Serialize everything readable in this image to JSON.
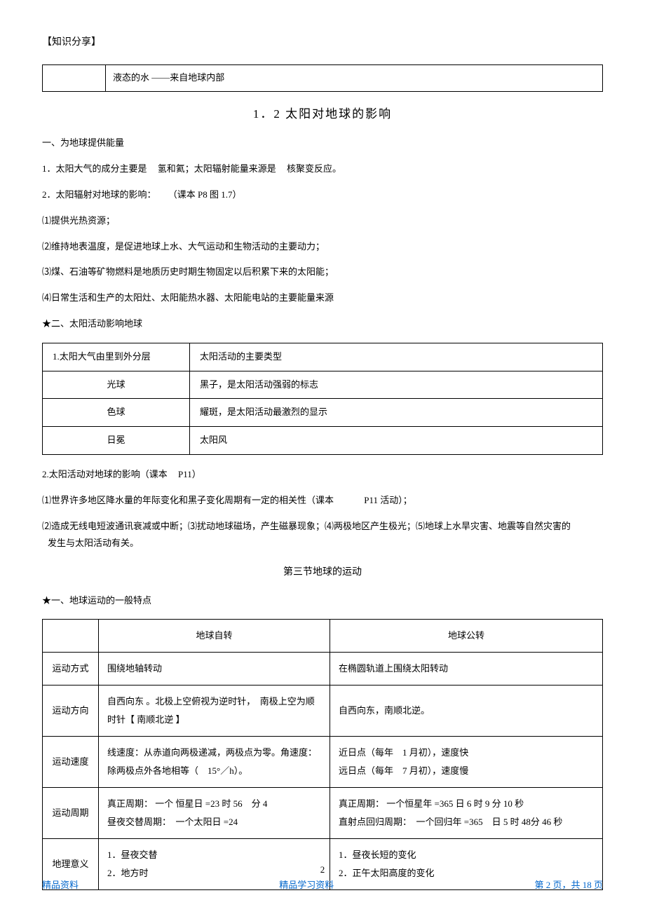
{
  "header_tag": "【知识分享】",
  "intro_cell_left": "",
  "intro_cell_right": "液态的水 ——来自地球内部",
  "section1_title": "1．2 太阳对地球的影响",
  "s1_h1": "一、为地球提供能量",
  "s1_p1_a": "1．太阳大气的成分主要是",
  "s1_p1_b": "氢和氦；太阳辐射能量来源是",
  "s1_p1_c": "核聚变反应。",
  "s1_p2_a": "2．太阳辐射对地球的影响：",
  "s1_p2_b": "（课本 P8 图 1.7）",
  "s1_list1": "⑴提供光热资源；",
  "s1_list2": "⑵维持地表温度，是促进地球上水、大气运动和生物活动的主要动力；",
  "s1_list3": "⑶煤、石油等矿物燃料是地质历史时期生物固定以后积累下来的太阳能；",
  "s1_list4": "⑷日常生活和生产的太阳灶、太阳能热水器、太阳能电站的主要能量来源",
  "s1_h2": "★二、太阳活动影响地球",
  "table1": {
    "header": [
      "1.太阳大气由里到外分层",
      "太阳活动的主要类型"
    ],
    "rows": [
      [
        "光球",
        "黑子，是太阳活动强弱的标志"
      ],
      [
        "色球",
        "耀斑，是太阳活动最激烈的显示"
      ],
      [
        "日冕",
        "太阳风"
      ]
    ]
  },
  "s1_p3_a": "2.太阳活动对地球的影响（课本",
  "s1_p3_b": "P11）",
  "s1_p4_a": "⑴世界许多地区降水量的年际变化和黑子变化周期有一定的相关性（课本",
  "s1_p4_b": "P11 活动）；",
  "s1_p5": "⑵造成无线电短波通讯衰减或中断；⑶扰动地球磁场，产生磁暴现象；⑷两极地区产生极光；⑸地球上水旱灾害、地震等自然灾害的",
  "s1_p6": "发生与太阳活动有关。",
  "section2_title": "第三节地球的运动",
  "s2_h1": "★一、地球运动的一般特点",
  "table2": {
    "col_headers": [
      "",
      "地球自转",
      "地球公转"
    ],
    "rows": [
      {
        "label": "运动方式",
        "rot": "围绕地轴转动",
        "rev": "在椭圆轨道上围绕太阳转动"
      },
      {
        "label": "运动方向",
        "rot": "自西向东 。北极上空俯视为逆时针，　南极上空为顺时针【 南顺北逆 】",
        "rev": "自西向东，南顺北逆。"
      },
      {
        "label": "运动速度",
        "rot": "线速度：从赤道向两极递减，两极点为零。角速度：除两极点外各地相等（　15°／h）。",
        "rev": "近日点（每年　1 月初），速度快\n远日点（每年　7 月初），速度慢"
      },
      {
        "label": "运动周期",
        "rot": "真正周期： 一个 恒星日 =23 时 56　分 4\n昼夜交替周期：　一个太阳日 =24",
        "rev": "真正周期： 一个恒星年 =365 日 6 时 9 分 10 秒\n直射点回归周期：　一个回归年 =365　日 5 时 48分 46 秒"
      },
      {
        "label": "地理意义",
        "rot": "1．昼夜交替\n2．地方时",
        "rev": "1．昼夜长短的变化\n2．正午太阳高度的变化"
      }
    ]
  },
  "footer": {
    "page_num_top": "2",
    "left": "精品资料",
    "center": "精品学习资料",
    "right": "第 2 页，共 18 页"
  }
}
